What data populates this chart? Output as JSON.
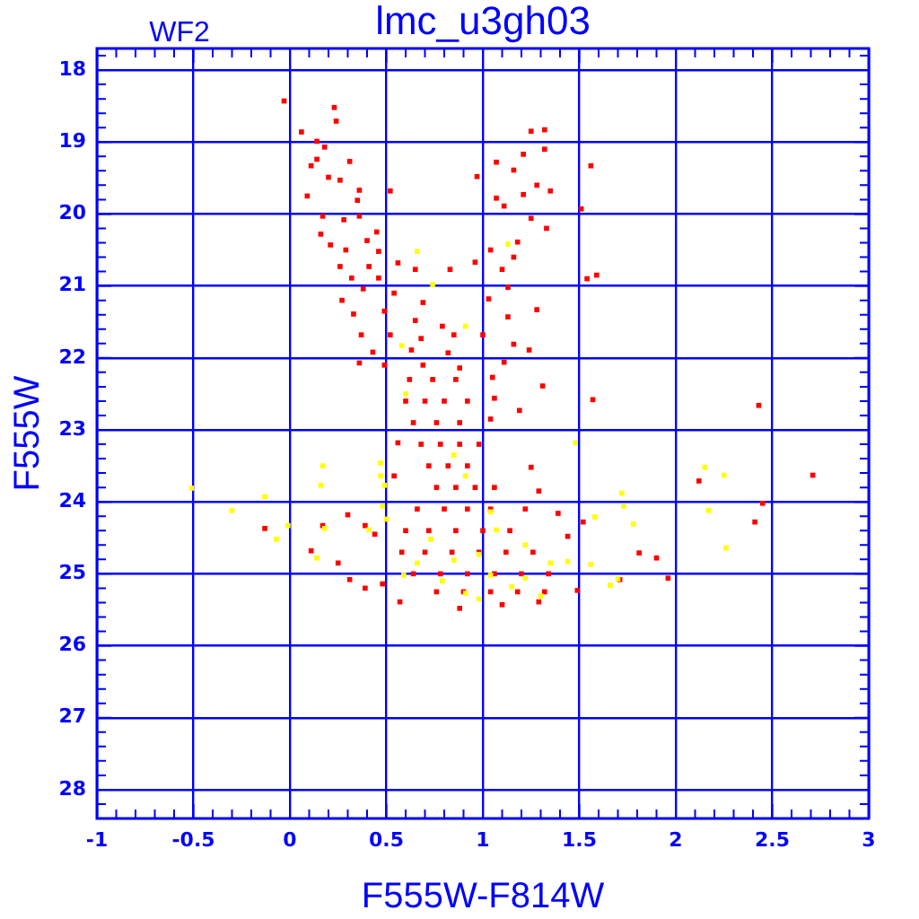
{
  "chart_data": {
    "type": "scatter",
    "title": "lmc_u3gh03",
    "xlabel": "F555W-F814W",
    "ylabel": "F555W",
    "annotations": [
      "WF2"
    ],
    "xlim": [
      -1,
      3
    ],
    "ylim": [
      28.4,
      17.7
    ],
    "xticks": [
      -1,
      {
        "value": -0.9,
        "label": null
      },
      {
        "value": -0.8,
        "label": null
      },
      {
        "value": -0.7,
        "label": null
      },
      {
        "value": -0.6,
        "label": null
      },
      -0.5,
      {
        "value": -0.4,
        "label": null
      },
      {
        "value": -0.3,
        "label": null
      },
      {
        "value": -0.2,
        "label": null
      },
      {
        "value": -0.1,
        "label": null
      },
      0,
      {
        "value": 0.1,
        "label": null
      },
      {
        "value": 0.2,
        "label": null
      },
      {
        "value": 0.3,
        "label": null
      },
      {
        "value": 0.4,
        "label": null
      },
      0.5,
      {
        "value": 0.6,
        "label": null
      },
      {
        "value": 0.7,
        "label": null
      },
      {
        "value": 0.8,
        "label": null
      },
      {
        "value": 0.9,
        "label": null
      },
      1,
      {
        "value": 1.1,
        "label": null
      },
      {
        "value": 1.2,
        "label": null
      },
      {
        "value": 1.3,
        "label": null
      },
      {
        "value": 1.4,
        "label": null
      },
      1.5,
      {
        "value": 1.6,
        "label": null
      },
      {
        "value": 1.7,
        "label": null
      },
      {
        "value": 1.8,
        "label": null
      },
      {
        "value": 1.9,
        "label": null
      },
      2,
      {
        "value": 2.1,
        "label": null
      },
      {
        "value": 2.2,
        "label": null
      },
      {
        "value": 2.3,
        "label": null
      },
      {
        "value": 2.4,
        "label": null
      },
      2.5,
      {
        "value": 2.6,
        "label": null
      },
      {
        "value": 2.7,
        "label": null
      },
      {
        "value": 2.8,
        "label": null
      },
      {
        "value": 2.9,
        "label": null
      },
      3
    ],
    "yticks": [
      {
        "value": 17.8,
        "label": null
      },
      18,
      {
        "value": 18.2,
        "label": null
      },
      {
        "value": 18.4,
        "label": null
      },
      {
        "value": 18.6,
        "label": null
      },
      {
        "value": 18.8,
        "label": null
      },
      19,
      {
        "value": 19.2,
        "label": null
      },
      {
        "value": 19.4,
        "label": null
      },
      {
        "value": 19.6,
        "label": null
      },
      {
        "value": 19.8,
        "label": null
      },
      20,
      {
        "value": 20.2,
        "label": null
      },
      {
        "value": 20.4,
        "label": null
      },
      {
        "value": 20.6,
        "label": null
      },
      {
        "value": 20.8,
        "label": null
      },
      21,
      {
        "value": 21.2,
        "label": null
      },
      {
        "value": 21.4,
        "label": null
      },
      {
        "value": 21.6,
        "label": null
      },
      {
        "value": 21.8,
        "label": null
      },
      22,
      {
        "value": 22.2,
        "label": null
      },
      {
        "value": 22.4,
        "label": null
      },
      {
        "value": 22.6,
        "label": null
      },
      {
        "value": 22.8,
        "label": null
      },
      23,
      {
        "value": 23.2,
        "label": null
      },
      {
        "value": 23.4,
        "label": null
      },
      {
        "value": 23.6,
        "label": null
      },
      {
        "value": 23.8,
        "label": null
      },
      24,
      {
        "value": 24.2,
        "label": null
      },
      {
        "value": 24.4,
        "label": null
      },
      {
        "value": 24.6,
        "label": null
      },
      {
        "value": 24.8,
        "label": null
      },
      25,
      {
        "value": 25.2,
        "label": null
      },
      {
        "value": 25.4,
        "label": null
      },
      {
        "value": 25.6,
        "label": null
      },
      {
        "value": 25.8,
        "label": null
      },
      26,
      {
        "value": 26.2,
        "label": null
      },
      {
        "value": 26.4,
        "label": null
      },
      {
        "value": 26.6,
        "label": null
      },
      {
        "value": 26.8,
        "label": null
      },
      27,
      {
        "value": 27.2,
        "label": null
      },
      {
        "value": 27.4,
        "label": null
      },
      {
        "value": 27.6,
        "label": null
      },
      {
        "value": 27.8,
        "label": null
      },
      28,
      {
        "value": 28.2,
        "label": null
      }
    ],
    "grid": true,
    "marker": "square",
    "series": [
      {
        "color": "#ff0000",
        "x": [
          -0.03,
          0.23,
          0.24,
          0.06,
          0.14,
          0.18,
          0.14,
          0.31,
          0.11,
          0.2,
          0.26,
          0.09,
          0.36,
          0.52,
          0.35,
          0.17,
          0.28,
          0.36,
          0.16,
          0.45,
          0.21,
          0.4,
          0.29,
          0.46,
          0.26,
          0.41,
          0.56,
          0.32,
          0.46,
          0.65,
          0.83,
          0.27,
          0.38,
          0.54,
          0.69,
          0.33,
          0.49,
          0.65,
          0.79,
          0.37,
          0.52,
          0.68,
          0.85,
          0.43,
          0.63,
          0.82,
          0.36,
          0.49,
          0.69,
          0.88,
          1.25,
          1.32,
          1.32,
          1.21,
          1.07,
          0.97,
          1.16,
          1.28,
          1.07,
          1.21,
          1.35,
          1.56,
          1.11,
          1.25,
          1.33,
          1.18,
          1.04,
          1.16,
          1.1,
          0.96,
          1.51,
          1.54,
          1.59,
          1.13,
          1.03,
          1.28,
          1.13,
          1,
          1.16,
          1.24,
          1.11,
          1.31,
          1.05,
          1.06,
          1.57,
          0.62,
          0.74,
          0.86,
          0.6,
          0.7,
          0.8,
          0.92,
          0.64,
          0.76,
          0.88,
          0.68,
          0.78,
          0.88,
          0.98,
          0.72,
          0.82,
          0.92,
          0.76,
          0.86,
          0.96,
          1.06,
          0.66,
          0.8,
          0.92,
          1.04,
          0.6,
          0.72,
          0.86,
          1,
          1.14,
          0.58,
          0.7,
          0.84,
          0.98,
          1.12,
          1.26,
          0.64,
          0.78,
          0.92,
          1.06,
          1.2,
          1.34,
          0.76,
          0.9,
          1.04,
          1.18,
          1.32,
          2.43,
          2.71,
          2.12,
          2.45,
          2.41,
          1.81,
          1.9,
          1.96,
          1.71,
          1.52,
          1.39,
          1.44,
          -0.13,
          0.11,
          0.17,
          0.3,
          0.25,
          0.39,
          0.44,
          0.31,
          0.39,
          0.48,
          0.56,
          0.54,
          1.25,
          1.19,
          1.29,
          1.22,
          1.04,
          0.88,
          1.1,
          1.29,
          1.49,
          0.57
        ],
        "values": [
          18.43,
          18.52,
          18.71,
          18.86,
          18.99,
          19.07,
          19.24,
          19.27,
          19.33,
          19.49,
          19.53,
          19.75,
          19.67,
          19.68,
          19.81,
          20.03,
          20.08,
          20.03,
          20.28,
          20.25,
          20.43,
          20.37,
          20.5,
          20.52,
          20.73,
          20.73,
          20.68,
          20.89,
          20.89,
          20.77,
          20.77,
          21.2,
          21.04,
          21.1,
          21.23,
          21.39,
          21.35,
          21.48,
          21.56,
          21.68,
          21.68,
          21.73,
          21.68,
          21.92,
          21.89,
          21.93,
          22.07,
          22.1,
          22.1,
          22.14,
          18.85,
          18.83,
          19.1,
          19.17,
          19.28,
          19.48,
          19.39,
          19.6,
          19.78,
          19.73,
          19.68,
          19.33,
          19.89,
          20.06,
          20.2,
          20.39,
          20.5,
          20.6,
          20.77,
          20.67,
          19.93,
          20.9,
          20.85,
          21.02,
          21.18,
          21.33,
          21.43,
          21.68,
          21.81,
          21.89,
          22.06,
          22.39,
          22.27,
          22.56,
          22.58,
          22.3,
          22.3,
          22.3,
          22.6,
          22.6,
          22.6,
          22.6,
          22.9,
          22.9,
          22.9,
          23.2,
          23.2,
          23.2,
          23.2,
          23.5,
          23.5,
          23.5,
          23.8,
          23.8,
          23.8,
          23.8,
          24.1,
          24.1,
          24.1,
          24.1,
          24.4,
          24.4,
          24.4,
          24.4,
          24.4,
          24.7,
          24.7,
          24.7,
          24.7,
          24.7,
          24.7,
          25,
          25,
          25,
          25,
          25,
          25,
          25.25,
          25.25,
          25.25,
          25.25,
          25.25,
          22.66,
          23.63,
          23.71,
          24.02,
          24.28,
          24.71,
          24.78,
          25.06,
          25.08,
          24.28,
          24.16,
          24.48,
          24.37,
          24.68,
          24.33,
          24.18,
          24.85,
          24.33,
          24.45,
          25.08,
          25.2,
          25.14,
          23.18,
          23.64,
          23.52,
          22.73,
          23.85,
          24.1,
          22.85,
          25.48,
          25.43,
          25.39,
          25.23,
          25.39
        ]
      },
      {
        "color": "#ffff00",
        "x": [
          -0.51,
          -0.3,
          -0.13,
          -0.07,
          -0.01,
          0.17,
          0.16,
          0.18,
          0.14,
          0.41,
          0.47,
          0.47,
          0.49,
          0.48,
          0.5,
          1.48,
          1.72,
          1.73,
          1.58,
          1.78,
          1.56,
          1.66,
          1.7,
          2.15,
          2.25,
          2.17,
          2.26,
          0.73,
          0.85,
          0.98,
          1.04,
          0.79,
          0.91,
          1.15,
          1.22,
          0.66,
          1.07,
          1.22,
          1.35,
          0.85,
          0.91,
          1.04,
          0.59,
          0.98,
          1.3,
          1.44,
          0.66,
          0.74,
          1.13,
          0.91,
          0.58,
          0.6
        ],
        "values": [
          23.81,
          24.12,
          23.93,
          24.52,
          24.33,
          23.5,
          23.77,
          24.37,
          24.78,
          24.39,
          23.46,
          23.64,
          23.77,
          24.06,
          24.24,
          23.18,
          23.88,
          24.06,
          24.21,
          24.31,
          24.87,
          25.16,
          25.07,
          23.52,
          23.63,
          24.12,
          24.64,
          24.52,
          24.81,
          24.73,
          25.02,
          25.1,
          25.27,
          25.18,
          25.06,
          24.85,
          24.39,
          24.6,
          24.85,
          23.35,
          23.64,
          24.14,
          25.02,
          25.35,
          25.31,
          24.83,
          20.52,
          20.98,
          20.42,
          21.56,
          21.83,
          22.5
        ]
      }
    ]
  }
}
